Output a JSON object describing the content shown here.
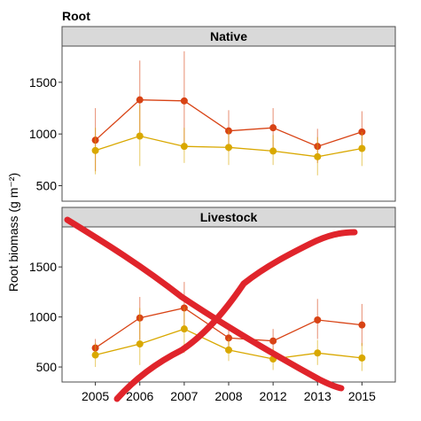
{
  "chart_data": {
    "type": "line",
    "title": "Root",
    "ylabel": "Root biomass (g m⁻²)",
    "xlabel": "",
    "categories": [
      "2005",
      "2006",
      "2007",
      "2008",
      "2012",
      "2013",
      "2015"
    ],
    "colors": {
      "red": "#d84315",
      "gold": "#d9a800",
      "scribble": "#e0242b"
    },
    "legend": "none",
    "grid": false,
    "panels": [
      {
        "strip": "Native",
        "ylim": [
          350,
          1850
        ],
        "yticks": [
          500,
          1000,
          1500
        ],
        "series": [
          {
            "color": "red",
            "values": [
              940,
              1330,
              1320,
              1030,
              1060,
              880,
              1020
            ],
            "err_low": [
              640,
              950,
              880,
              830,
              860,
              720,
              830
            ],
            "err_high": [
              1250,
              1710,
              1800,
              1230,
              1250,
              1050,
              1220
            ]
          },
          {
            "color": "gold",
            "values": [
              840,
              980,
              880,
              870,
              835,
              780,
              860
            ],
            "err_low": [
              610,
              690,
              720,
              700,
              700,
              600,
              690
            ],
            "err_high": [
              1060,
              1280,
              1060,
              1040,
              990,
              970,
              1020
            ]
          }
        ]
      },
      {
        "strip": "Livestock",
        "ylim": [
          350,
          1900
        ],
        "yticks": [
          500,
          1000,
          1500
        ],
        "series": [
          {
            "color": "red",
            "values": [
              690,
              990,
              1090,
              790,
              760,
              970,
              920
            ],
            "err_low": [
              610,
              770,
              860,
              680,
              640,
              780,
              710
            ],
            "err_high": [
              780,
              1200,
              1350,
              900,
              880,
              1180,
              1130
            ]
          },
          {
            "color": "gold",
            "values": [
              620,
              730,
              880,
              670,
              580,
              640,
              590
            ],
            "err_low": [
              500,
              520,
              640,
              560,
              470,
              520,
              460
            ],
            "err_high": [
              740,
              1090,
              1100,
              790,
              690,
              770,
              740
            ]
          }
        ]
      }
    ]
  }
}
